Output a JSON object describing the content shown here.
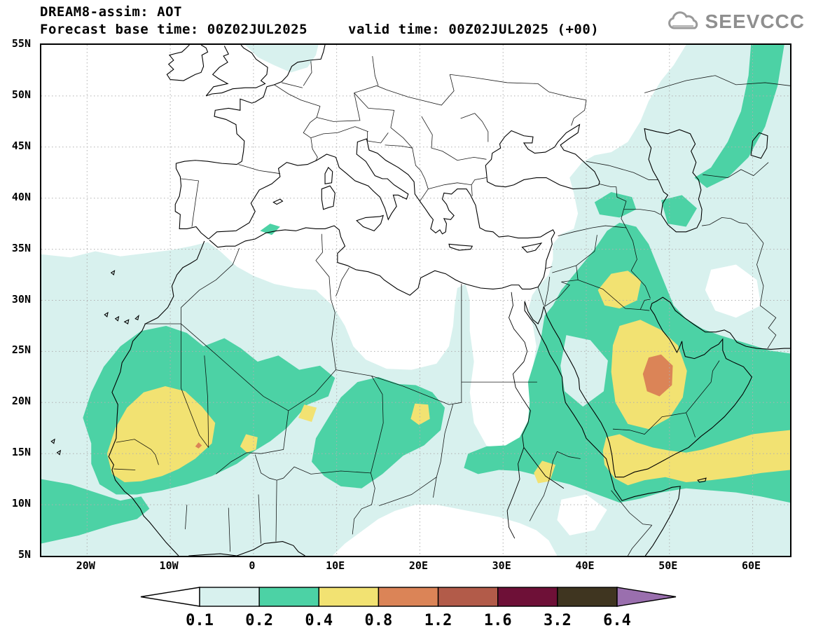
{
  "header": {
    "title": "DREAM8-assim: AOT",
    "base_time_label": "Forecast base time: 00Z02JUL2025",
    "valid_time_label": "valid time: 00Z02JUL2025 (+00)",
    "logo_text": "SEEVCCC"
  },
  "chart_data": {
    "type": "heatmap",
    "title": "DREAM8-assim: AOT",
    "variable": "AOT",
    "forecast_base_time": "00Z02JUL2025",
    "valid_time": "00Z02JUL2025 (+00)",
    "projection": "lat-lon",
    "grid": "dotted",
    "legend_position": "bottom",
    "lat_axis": {
      "min": 5,
      "max": 55,
      "tick_values": [
        55,
        50,
        45,
        40,
        35,
        30,
        25,
        20,
        15,
        10,
        5
      ],
      "tick_labels": [
        "55N",
        "50N",
        "45N",
        "40N",
        "35N",
        "30N",
        "25N",
        "20N",
        "15N",
        "10N",
        "5N"
      ]
    },
    "lon_axis": {
      "min": -25.5,
      "max": 64.5,
      "tick_values": [
        -20,
        -10,
        0,
        10,
        20,
        30,
        40,
        50,
        60
      ],
      "tick_labels": [
        "20W",
        "10W",
        "0",
        "10E",
        "20E",
        "30E",
        "40E",
        "50E",
        "60E"
      ]
    },
    "contour_levels": [
      0.1,
      0.2,
      0.4,
      0.8,
      1.2,
      1.6,
      3.2,
      6.4
    ],
    "notable_values": [
      {
        "lon": 48.5,
        "lat": 22.5,
        "aot": 1.0,
        "note": "peak over central Saudi Arabia (0.8-1.2)"
      },
      {
        "lon": -12,
        "lat": 17,
        "aot": 0.6,
        "note": "West Africa Mauritania/Mali/Senegal plume (0.4-0.8)"
      },
      {
        "lon": 44,
        "lat": 31,
        "aot": 0.5,
        "note": "Iraq patch (0.4-0.8)"
      },
      {
        "lon": 50,
        "lat": 14,
        "aot": 0.6,
        "note": "Yemen / Gulf of Aden / Arabian Sea band (0.4-0.8)"
      },
      {
        "lon": 20,
        "lat": 19,
        "aot": 0.5,
        "note": "Chad spot (0.4-0.8)"
      },
      {
        "lon": 35,
        "lat": 13,
        "aot": 0.5,
        "note": "Sudan/Ethiopia spot (0.4-0.8)"
      },
      {
        "lon": 0,
        "lat": 22,
        "aot": 0.3,
        "note": "central Sahara band (0.2-0.4)"
      },
      {
        "lon": 45,
        "lat": 34,
        "aot": 0.3,
        "note": "Mesopotamia / west Iran band (0.2-0.4)"
      },
      {
        "lon": 58,
        "lat": 48,
        "aot": 0.3,
        "note": "band toward Caspian / NE corner (0.2-0.4)"
      },
      {
        "lon": 20,
        "lat": 28,
        "aot": 0.05,
        "note": "Libya mostly below 0.1"
      },
      {
        "lon": 29,
        "lat": 24,
        "aot": 0.05,
        "note": "Egypt / N Sudan below 0.1"
      }
    ]
  },
  "colorbar": {
    "labels": [
      "0.1",
      "0.2",
      "0.4",
      "0.8",
      "1.2",
      "1.6",
      "3.2",
      "6.4"
    ],
    "colors": {
      "below": "#ffffff",
      "segments": [
        "#d8f1ee",
        "#4cd2a5",
        "#f2e272",
        "#db8457",
        "#b25b49",
        "#6e1037",
        "#3f3520"
      ],
      "above": "#9a6fae"
    }
  },
  "map_colors": {
    "level_0_1": "#d8f1ee",
    "level_0_2": "#4cd2a5",
    "level_0_4": "#f2e272",
    "level_0_8": "#db8457"
  }
}
